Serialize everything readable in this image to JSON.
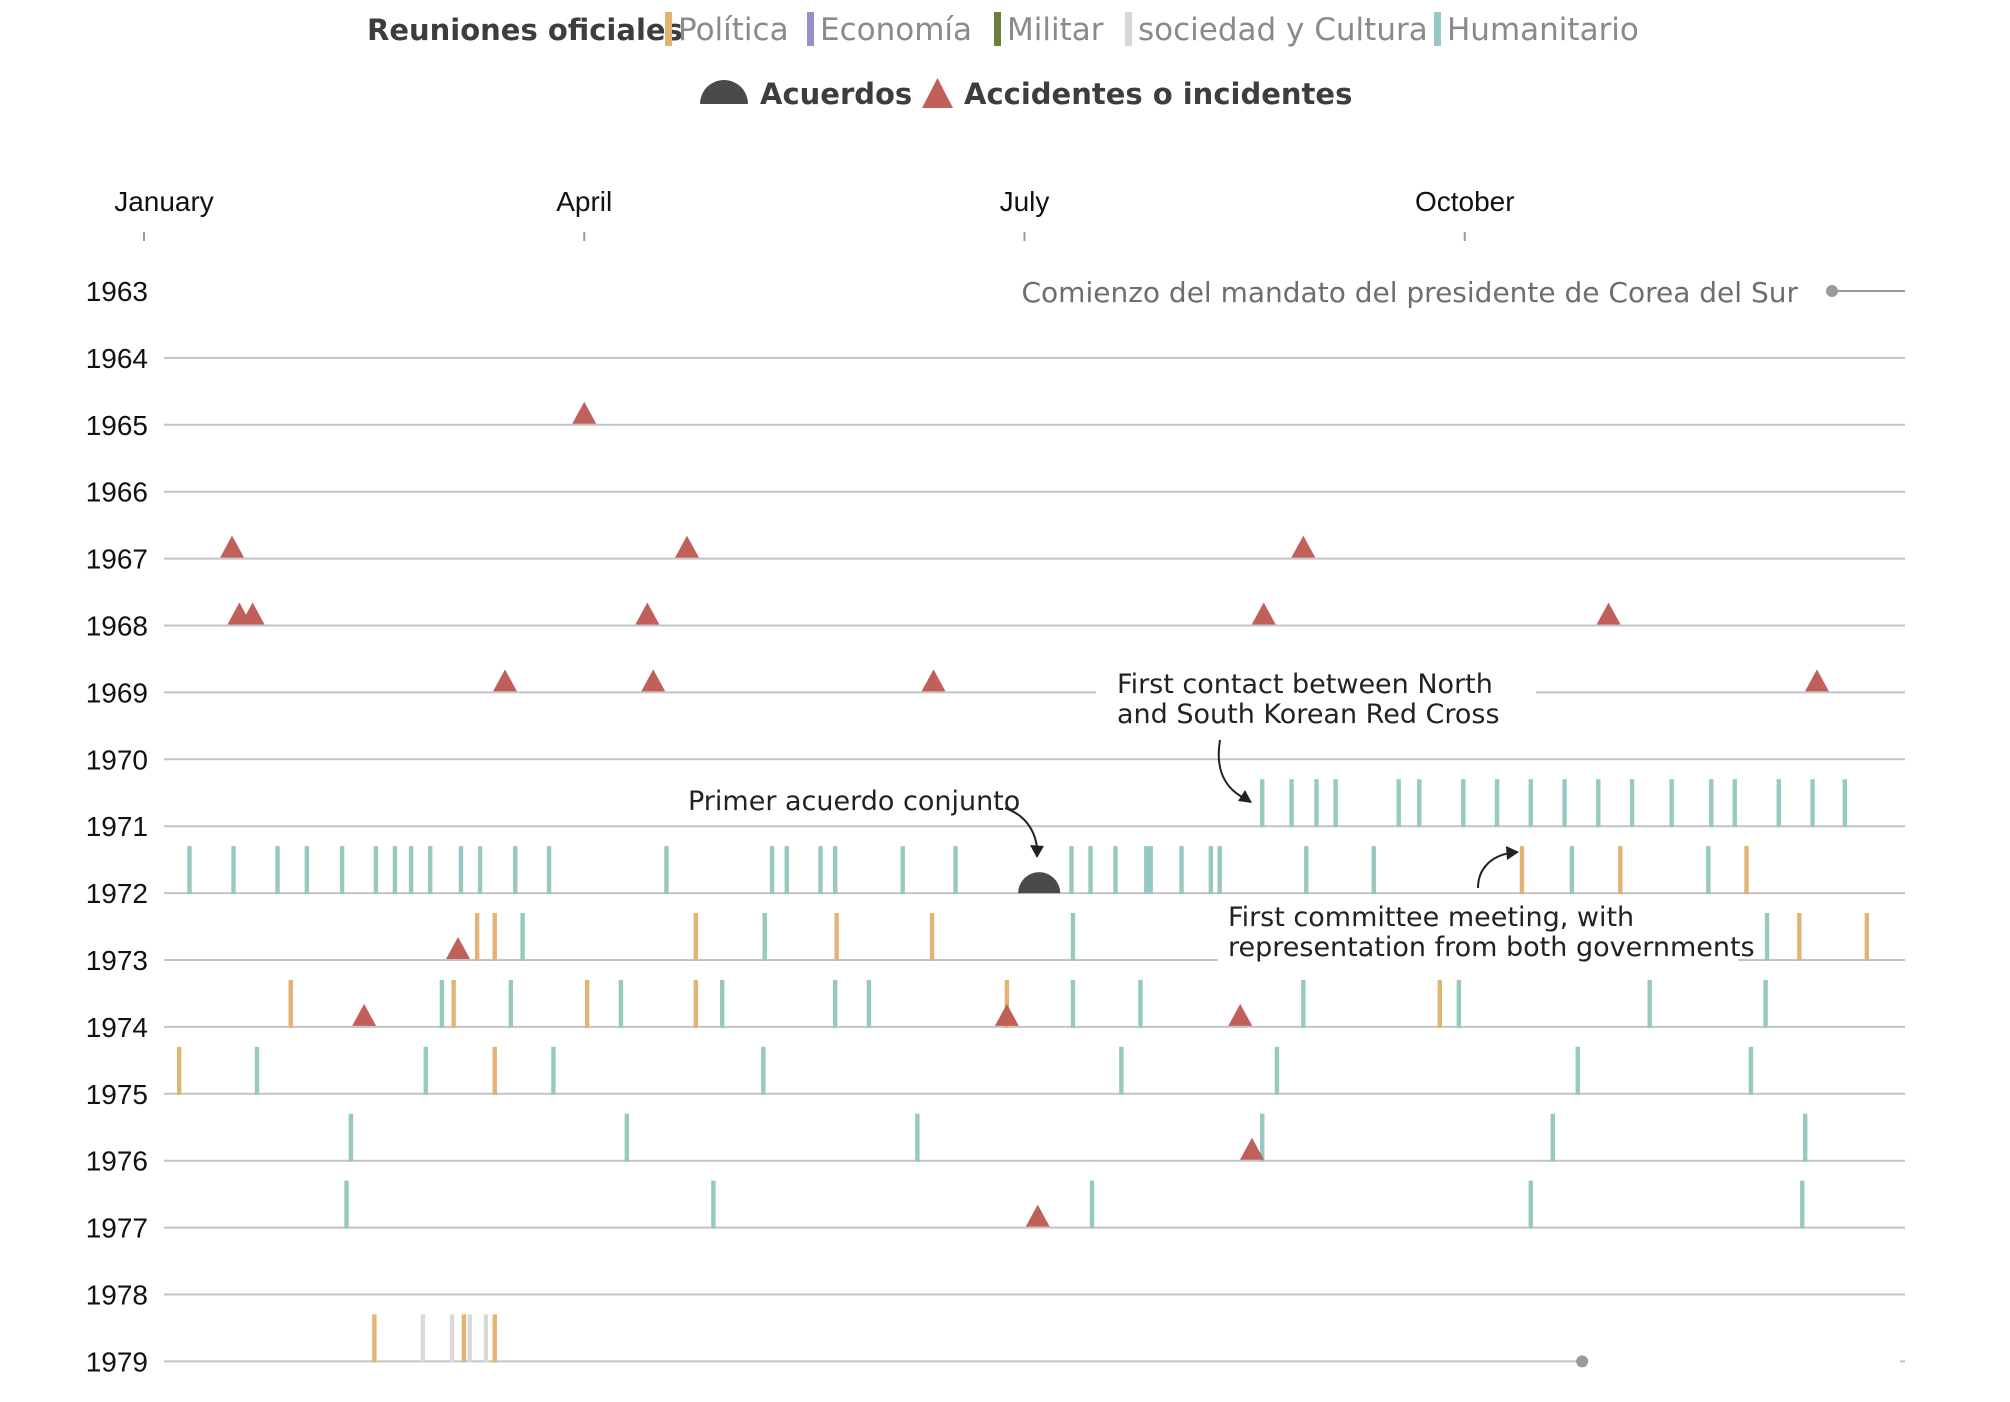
{
  "legend": {
    "meetings_title": "Reuniones oficiales",
    "categories": [
      {
        "key": "politica",
        "label": "Política",
        "color": "#e2b373"
      },
      {
        "key": "economia",
        "label": "Economía",
        "color": "#9b8fc8"
      },
      {
        "key": "militar",
        "label": "Militar",
        "color": "#6b7f3c"
      },
      {
        "key": "sociedad",
        "label": "sociedad y Cultura",
        "color": "#d8d8d8"
      },
      {
        "key": "humanitario",
        "label": "Humanitario",
        "color": "#97c9c0"
      }
    ],
    "agreements_label": "Acuerdos",
    "incidents_label": "Accidentes o incidentes",
    "agreement_color": "#4a4a4a",
    "incident_color": "#c1605b"
  },
  "annotations": {
    "term_start": "Comienzo del mandato del presidente de Corea del Sur",
    "red_cross_line1": "First contact between North",
    "red_cross_line2": "and South Korean Red Cross",
    "first_agreement": "Primer acuerdo conjunto",
    "committee_line1": "First committee meeting, with",
    "committee_line2": "representation from both governments"
  },
  "chart_data": {
    "type": "timeline",
    "x_axis": {
      "unit": "month",
      "range": [
        1,
        13
      ],
      "ticks": [
        {
          "month": 1,
          "label": "January"
        },
        {
          "month": 4,
          "label": "April"
        },
        {
          "month": 7,
          "label": "July"
        },
        {
          "month": 10,
          "label": "October"
        }
      ]
    },
    "years": [
      1963,
      1964,
      1965,
      1966,
      1967,
      1968,
      1969,
      1970,
      1971,
      1972,
      1973,
      1974,
      1975,
      1976,
      1977,
      1978,
      1979
    ],
    "incidents": [
      {
        "year": 1965,
        "month": 4.0
      },
      {
        "year": 1967,
        "month": 1.6
      },
      {
        "year": 1967,
        "month": 4.7
      },
      {
        "year": 1967,
        "month": 8.9
      },
      {
        "year": 1968,
        "month": 1.65
      },
      {
        "year": 1968,
        "month": 1.74
      },
      {
        "year": 1968,
        "month": 4.43
      },
      {
        "year": 1968,
        "month": 8.63
      },
      {
        "year": 1968,
        "month": 10.98
      },
      {
        "year": 1969,
        "month": 3.46
      },
      {
        "year": 1969,
        "month": 4.47
      },
      {
        "year": 1969,
        "month": 6.38
      },
      {
        "year": 1969,
        "month": 12.4
      },
      {
        "year": 1973,
        "month": 3.14
      },
      {
        "year": 1974,
        "month": 2.5
      },
      {
        "year": 1974,
        "month": 6.88
      },
      {
        "year": 1974,
        "month": 8.47
      },
      {
        "year": 1976,
        "month": 8.55
      },
      {
        "year": 1977,
        "month": 7.09
      }
    ],
    "agreements": [
      {
        "year": 1972,
        "month": 7.1
      }
    ],
    "meetings": [
      {
        "year": 1971,
        "category": "humanitario",
        "months": [
          8.62,
          8.82,
          8.99,
          9.12,
          9.55,
          9.69,
          9.99,
          10.22,
          10.45,
          10.68,
          10.91,
          11.14,
          11.41,
          11.68,
          11.84,
          12.14,
          12.37,
          12.59
        ]
      },
      {
        "year": 1972,
        "category": "humanitario",
        "months": [
          1.31,
          1.61,
          1.91,
          2.11,
          2.35,
          2.58,
          2.71,
          2.82,
          2.95,
          3.16,
          3.29,
          3.53,
          3.76,
          4.56,
          5.28,
          5.38,
          5.61,
          5.71,
          6.17,
          6.53,
          7.32,
          7.45,
          7.62,
          7.83,
          7.86,
          8.07,
          8.27,
          8.33,
          8.92,
          9.38,
          10.73,
          11.66
        ],
        "extra": [
          {
            "category": "politica",
            "months": [
              10.39,
              11.06,
              11.92
            ]
          }
        ]
      },
      {
        "year": 1973,
        "category": "politica",
        "months": [
          3.27,
          3.39,
          4.76,
          5.72,
          6.37
        ],
        "extra": [
          {
            "category": "humanitario",
            "months": [
              3.58,
              5.23,
              7.33,
              12.06
            ]
          },
          {
            "category": "politica",
            "months": [
              12.28,
              12.74
            ]
          }
        ]
      },
      {
        "year": 1974,
        "category": "politica",
        "months": [
          2.0,
          3.11,
          4.02,
          4.76,
          6.88,
          9.83
        ],
        "extra": [
          {
            "category": "humanitario",
            "months": [
              3.03,
              3.5,
              4.25,
              4.94,
              5.71,
              5.94,
              7.33,
              7.79,
              8.9,
              9.96,
              11.26,
              12.05
            ]
          }
        ]
      },
      {
        "year": 1975,
        "category": "politica",
        "months": [
          1.24,
          3.39
        ],
        "extra": [
          {
            "category": "humanitario",
            "months": [
              1.77,
              2.92,
              3.79,
              5.22,
              7.66,
              8.72,
              10.77,
              11.95
            ]
          }
        ]
      },
      {
        "year": 1976,
        "category": "humanitario",
        "months": [
          2.41,
          4.29,
          6.27,
          8.62,
          10.6,
          12.32
        ]
      },
      {
        "year": 1977,
        "category": "humanitario",
        "months": [
          2.38,
          4.88,
          7.46,
          10.45,
          12.3
        ]
      },
      {
        "year": 1979,
        "category": "politica",
        "months": [
          2.57,
          3.18,
          3.39
        ],
        "extra": [
          {
            "category": "sociedad",
            "months": [
              2.9,
              3.1,
              3.22,
              3.33
            ]
          }
        ]
      }
    ],
    "president_term_line": {
      "start_year": 1963,
      "end_year": 1979,
      "end_month": 10.8
    }
  }
}
